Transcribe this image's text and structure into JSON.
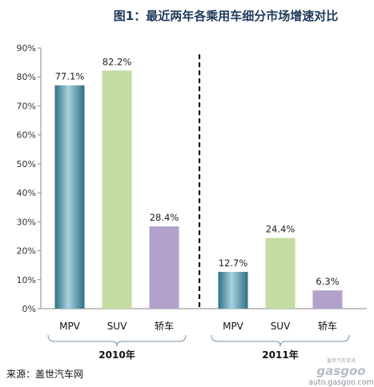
{
  "title": "图1：最近两年各乘用车细分市场增速对比",
  "source": "来源：盖世汽车网",
  "watermark": {
    "brand": "gasgoo",
    "tagline": "盖世汽车资讯",
    "url": "auto.gasgoo.com"
  },
  "colors": {
    "mpv": "#4a8ea3",
    "mpv_light": "#a9d2dd",
    "suv": "#c4dba1",
    "sedan": "#b2a2c9",
    "title": "#1f3a5a"
  },
  "chart_data": {
    "type": "bar",
    "y_ticks": [
      "0%",
      "10%",
      "20%",
      "30%",
      "40%",
      "50%",
      "60%",
      "70%",
      "80%",
      "90%"
    ],
    "ylim": [
      0,
      90
    ],
    "groups": [
      {
        "label": "2010年",
        "categories": [
          "MPV",
          "SUV",
          "轿车"
        ],
        "values": [
          77.1,
          82.2,
          28.4
        ],
        "value_labels": [
          "77.1%",
          "82.2%",
          "28.4%"
        ]
      },
      {
        "label": "2011年",
        "categories": [
          "MPV",
          "SUV",
          "轿车"
        ],
        "values": [
          12.7,
          24.4,
          6.3
        ],
        "value_labels": [
          "12.7%",
          "24.4%",
          "6.3%"
        ]
      }
    ],
    "grid": false,
    "legend": "none"
  }
}
